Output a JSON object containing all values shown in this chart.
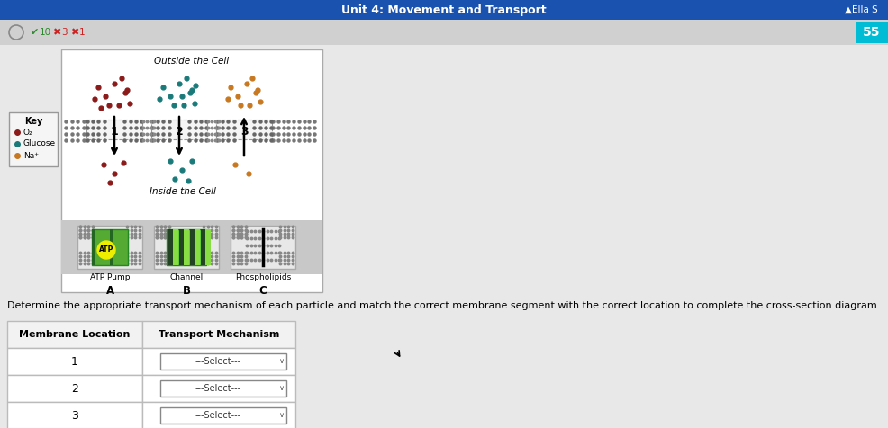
{
  "title": "Unit 4: Movement and Transport",
  "title_color": "#ffffff",
  "title_bg": "#1a52b0",
  "toolbar_bg": "#d4d4d4",
  "score_bg": "#00bcd4",
  "score_text": "55",
  "outside_label": "Outside the Cell",
  "inside_label": "Inside the Cell",
  "key_title": "Key",
  "key_items": [
    "O₂",
    "Glucose",
    "Na⁺"
  ],
  "key_colors": [
    "#8b1a1a",
    "#1a7a7a",
    "#c87820"
  ],
  "particle_colors": [
    "#8b1a1a",
    "#1a7a7a",
    "#c87820"
  ],
  "segment_labels": [
    "A",
    "B",
    "C"
  ],
  "segment_titles": [
    "ATP Pump",
    "Channel",
    "Phospholipids"
  ],
  "table_headers": [
    "Membrane Location",
    "Transport Mechanism"
  ],
  "table_rows": [
    "1",
    "2",
    "3"
  ],
  "select_text": "---Select---",
  "bg_color": "#e8e8e8",
  "description": "Determine the appropriate transport mechanism of each particle and match the correct membrane segment with the correct location to complete the cross-section diagram."
}
